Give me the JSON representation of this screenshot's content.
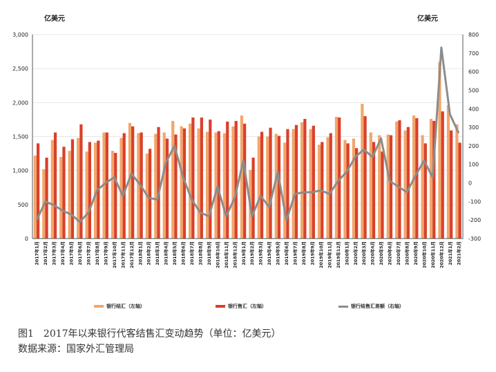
{
  "chart_data": {
    "type": "bar",
    "left_unit": "亿美元",
    "right_unit": "亿美元",
    "left_axis": {
      "min": 0,
      "max": 3000,
      "step": 500,
      "ticks": [
        "0",
        "500",
        "1,000",
        "1,500",
        "2,000",
        "2,500",
        "3,000"
      ]
    },
    "right_axis": {
      "min": -300,
      "max": 800,
      "step": 100,
      "ticks": [
        "-300",
        "-200",
        "-100",
        "0",
        "100",
        "200",
        "300",
        "400",
        "500",
        "600",
        "700",
        "800"
      ]
    },
    "categories": [
      "2017年1月",
      "2017年2月",
      "2017年3月",
      "2017年4月",
      "2017年5月",
      "2017年6月",
      "2017年7月",
      "2017年8月",
      "2017年9月",
      "2017年10月",
      "2017年11月",
      "2017年12月",
      "2018年1月",
      "2018年2月",
      "2018年3月",
      "2018年4月",
      "2018年5月",
      "2018年6月",
      "2018年7月",
      "2018年8月",
      "2018年9月",
      "2018年10月",
      "2018年11月",
      "2018年12月",
      "2019年1月",
      "2019年2月",
      "2019年3月",
      "2019年4月",
      "2019年5月",
      "2019年6月",
      "2019年7月",
      "2019年8月",
      "2019年9月",
      "2019年10月",
      "2019年11月",
      "2019年12月",
      "2020年1月",
      "2020年2月",
      "2020年3月",
      "2020年4月",
      "2020年5月",
      "2020年6月",
      "2020年7月",
      "2020年8月",
      "2020年9月",
      "2020年10月",
      "2020年11月",
      "2020年12月",
      "2021年1月",
      "2021年2月"
    ],
    "series": [
      {
        "name": "银行结汇（左轴）",
        "axis": "left",
        "kind": "bar",
        "color": "#f2a66b",
        "values": [
          1220,
          1020,
          1450,
          1200,
          1290,
          1480,
          1280,
          1410,
          1560,
          1290,
          1480,
          1700,
          1550,
          1250,
          1540,
          1560,
          1730,
          1650,
          1690,
          1620,
          1570,
          1560,
          1550,
          1650,
          1810,
          1010,
          1500,
          1500,
          1540,
          1410,
          1610,
          1710,
          1610,
          1380,
          1490,
          1790,
          1450,
          1470,
          1980,
          1560,
          1520,
          1530,
          1720,
          1590,
          1810,
          1520,
          1760,
          2600,
          1960,
          1680
        ]
      },
      {
        "name": "银行售汇（左轴）",
        "axis": "left",
        "kind": "bar",
        "color": "#d9402a",
        "values": [
          1400,
          1190,
          1560,
          1350,
          1460,
          1680,
          1420,
          1440,
          1560,
          1260,
          1550,
          1650,
          1560,
          1320,
          1640,
          1470,
          1530,
          1620,
          1780,
          1780,
          1750,
          1580,
          1720,
          1730,
          1690,
          1190,
          1570,
          1630,
          1510,
          1610,
          1670,
          1760,
          1660,
          1420,
          1550,
          1780,
          1400,
          1330,
          1800,
          1420,
          1280,
          1520,
          1740,
          1640,
          1770,
          1400,
          1730,
          1870,
          1590,
          1410
        ]
      },
      {
        "name": "银行结售汇差额（右轴）",
        "axis": "right",
        "kind": "line",
        "color": "#8c8c8c",
        "values": [
          -200,
          -100,
          -120,
          -150,
          -170,
          -210,
          -160,
          -40,
          0,
          30,
          -70,
          50,
          -10,
          -80,
          -90,
          110,
          200,
          30,
          -90,
          -160,
          -180,
          -20,
          -180,
          -80,
          120,
          -180,
          -70,
          -130,
          60,
          -200,
          -60,
          -50,
          -50,
          -40,
          -60,
          10,
          60,
          140,
          180,
          140,
          240,
          10,
          -20,
          -50,
          40,
          120,
          30,
          730,
          370,
          270
        ]
      }
    ]
  },
  "caption": {
    "line1": "图1　2017年以来银行代客结售汇变动趋势（单位：亿美元）",
    "line2": "数据来源：国家外汇管理局"
  }
}
